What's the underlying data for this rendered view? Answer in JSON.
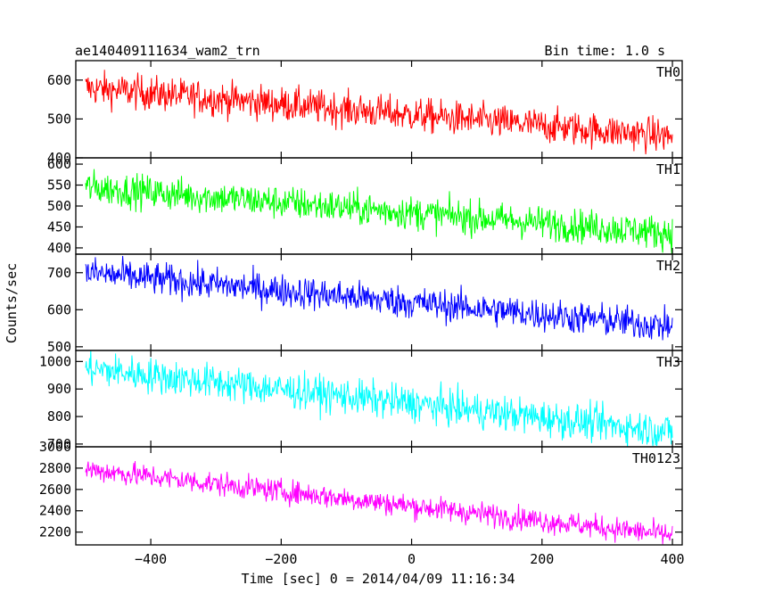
{
  "chart_data": {
    "type": "line",
    "title": "ae140409111634_wam2_trn",
    "bin_time": "Bin time: 1.0 s",
    "xlabel": "Time [sec] 0 = 2014/04/09 11:16:34",
    "ylabel": "Counts/sec",
    "xlim": [
      -515,
      415
    ],
    "xticks": [
      -400,
      -200,
      0,
      200,
      400
    ],
    "grid": false,
    "legend": "none",
    "panels": [
      {
        "name": "TH0",
        "color": "#ff0000",
        "ylim": [
          400,
          650
        ],
        "yticks": [
          400,
          500,
          600
        ],
        "start": 580,
        "end": 455,
        "noise": 22,
        "x": [
          -500,
          -400,
          -300,
          -200,
          -100,
          0,
          100,
          200,
          300,
          400
        ],
        "y": [
          580,
          565,
          548,
          528,
          513,
          500,
          485,
          473,
          462,
          455
        ]
      },
      {
        "name": "TH1",
        "color": "#00ff00",
        "ylim": [
          385,
          615
        ],
        "yticks": [
          400,
          450,
          500,
          550,
          600
        ],
        "start": 545,
        "end": 435,
        "noise": 20,
        "x": [
          -500,
          -400,
          -300,
          -200,
          -100,
          0,
          100,
          200,
          300,
          400
        ],
        "y": [
          545,
          530,
          515,
          498,
          485,
          472,
          460,
          452,
          443,
          435
        ]
      },
      {
        "name": "TH2",
        "color": "#0000ff",
        "ylim": [
          490,
          750
        ],
        "yticks": [
          500,
          600,
          700
        ],
        "start": 700,
        "end": 555,
        "noise": 22,
        "x": [
          -500,
          -400,
          -300,
          -200,
          -100,
          0,
          100,
          200,
          300,
          400
        ],
        "y": [
          700,
          683,
          665,
          648,
          630,
          613,
          597,
          580,
          566,
          555
        ]
      },
      {
        "name": "TH3",
        "color": "#00ffff",
        "ylim": [
          690,
          1040
        ],
        "yticks": [
          700,
          800,
          900,
          1000
        ],
        "start": 975,
        "end": 745,
        "noise": 32,
        "x": [
          -500,
          -400,
          -300,
          -200,
          -100,
          0,
          100,
          200,
          300,
          400
        ],
        "y": [
          975,
          950,
          922,
          895,
          868,
          840,
          815,
          790,
          768,
          745
        ]
      },
      {
        "name": "TH0123",
        "color": "#ff00ff",
        "ylim": [
          2080,
          3000
        ],
        "yticks": [
          2200,
          2400,
          2600,
          2800,
          3000
        ],
        "start": 2790,
        "end": 2170,
        "noise": 55,
        "x": [
          -500,
          -400,
          -300,
          -200,
          -100,
          0,
          100,
          200,
          300,
          400
        ],
        "y": [
          2790,
          2720,
          2645,
          2575,
          2500,
          2430,
          2360,
          2290,
          2225,
          2170
        ]
      }
    ]
  }
}
